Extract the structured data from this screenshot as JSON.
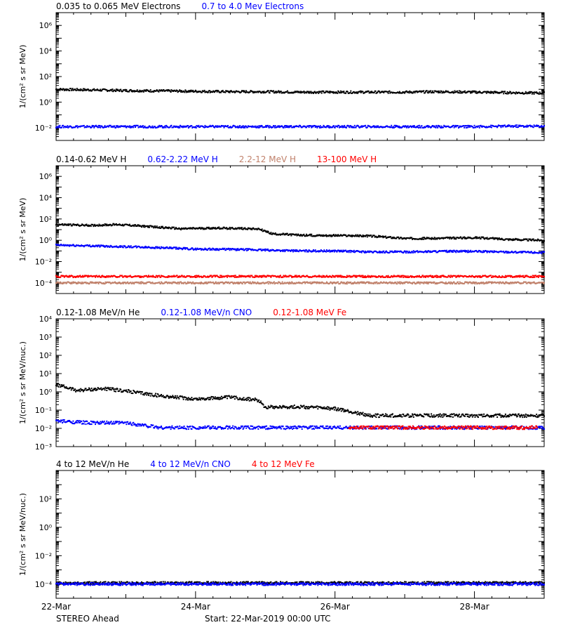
{
  "colors": {
    "axis": "#000000",
    "black_series": "#000000",
    "blue_series": "#0000ff",
    "tan_series": "#c0806a",
    "red_series": "#ff0000"
  },
  "chart_data": [
    {
      "type": "scatter",
      "log_y": true,
      "ylabel": "1/(cm² s sr MeV)",
      "ylim": [
        0.001,
        10000000
      ],
      "yticks": [
        {
          "value": 0.01,
          "label": "10⁻²"
        },
        {
          "value": 1,
          "label": "10⁰"
        },
        {
          "value": 100,
          "label": "10²"
        },
        {
          "value": 10000,
          "label": "10⁴"
        },
        {
          "value": 1000000,
          "label": "10⁶"
        }
      ],
      "series": [
        {
          "name": "0.035 to 0.065 MeV Electrons",
          "color": "#000000",
          "points": [
            [
              0,
              10
            ],
            [
              0.5,
              9
            ],
            [
              1,
              8
            ],
            [
              1.5,
              7.5
            ],
            [
              2,
              7
            ],
            [
              2.5,
              6.5
            ],
            [
              3,
              6.5
            ],
            [
              3.5,
              6
            ],
            [
              4,
              6
            ],
            [
              4.5,
              6
            ],
            [
              5,
              6
            ],
            [
              5.5,
              6.5
            ],
            [
              6,
              6
            ],
            [
              6.5,
              5.5
            ],
            [
              7,
              5
            ]
          ]
        },
        {
          "name": "0.7 to 4.0 Mev Electrons",
          "color": "#0000ff",
          "points": [
            [
              0,
              0.012
            ],
            [
              0.5,
              0.012
            ],
            [
              1,
              0.012
            ],
            [
              1.5,
              0.012
            ],
            [
              2,
              0.012
            ],
            [
              2.5,
              0.012
            ],
            [
              3,
              0.012
            ],
            [
              3.5,
              0.012
            ],
            [
              4,
              0.012
            ],
            [
              4.5,
              0.012
            ],
            [
              5,
              0.012
            ],
            [
              5.5,
              0.012
            ],
            [
              6,
              0.012
            ],
            [
              6.5,
              0.013
            ],
            [
              7,
              0.013
            ]
          ]
        }
      ]
    },
    {
      "type": "scatter",
      "log_y": true,
      "ylabel": "1/(cm² s sr MeV)",
      "ylim": [
        1e-05,
        10000000
      ],
      "yticks": [
        {
          "value": 0.0001,
          "label": "10⁻⁴"
        },
        {
          "value": 0.01,
          "label": "10⁻²"
        },
        {
          "value": 1,
          "label": "10⁰"
        },
        {
          "value": 100,
          "label": "10²"
        },
        {
          "value": 10000,
          "label": "10⁴"
        },
        {
          "value": 1000000,
          "label": "10⁶"
        }
      ],
      "series": [
        {
          "name": "0.14-0.62 MeV H",
          "color": "#000000",
          "points": [
            [
              0,
              30
            ],
            [
              0.5,
              25
            ],
            [
              0.9,
              30
            ],
            [
              1.3,
              20
            ],
            [
              1.8,
              12
            ],
            [
              2.3,
              14
            ],
            [
              2.9,
              12
            ],
            [
              3.1,
              4
            ],
            [
              3.5,
              3
            ],
            [
              4,
              2.8
            ],
            [
              4.5,
              2.5
            ],
            [
              5,
              1.5
            ],
            [
              5.5,
              1.5
            ],
            [
              6,
              1.8
            ],
            [
              6.5,
              1.2
            ],
            [
              7,
              1
            ]
          ]
        },
        {
          "name": "0.62-2.22 MeV H",
          "color": "#0000ff",
          "points": [
            [
              0,
              0.35
            ],
            [
              0.5,
              0.3
            ],
            [
              1,
              0.25
            ],
            [
              1.5,
              0.2
            ],
            [
              2,
              0.15
            ],
            [
              2.5,
              0.14
            ],
            [
              3,
              0.12
            ],
            [
              3.5,
              0.1
            ],
            [
              4,
              0.1
            ],
            [
              4.5,
              0.08
            ],
            [
              5,
              0.08
            ],
            [
              5.5,
              0.09
            ],
            [
              6,
              0.09
            ],
            [
              6.5,
              0.08
            ],
            [
              7,
              0.07
            ]
          ]
        },
        {
          "name": "2.2-12 MeV H",
          "color": "#c0806a",
          "points": [
            [
              0,
              0.0001
            ],
            [
              1,
              0.0001
            ],
            [
              2,
              0.0001
            ],
            [
              3,
              0.0001
            ],
            [
              4,
              0.0001
            ],
            [
              5,
              0.0001
            ],
            [
              6,
              0.0001
            ],
            [
              7,
              0.0001
            ]
          ]
        },
        {
          "name": "13-100 MeV H",
          "color": "#ff0000",
          "points": [
            [
              0,
              0.0004
            ],
            [
              1,
              0.0004
            ],
            [
              2,
              0.0004
            ],
            [
              3,
              0.0004
            ],
            [
              4,
              0.0004
            ],
            [
              5,
              0.0004
            ],
            [
              6,
              0.0004
            ],
            [
              7,
              0.0004
            ]
          ]
        }
      ]
    },
    {
      "type": "scatter",
      "log_y": true,
      "ylabel": "1/(cm² s sr MeV/nuc.)",
      "ylim": [
        0.001,
        10000
      ],
      "yticks": [
        {
          "value": 0.001,
          "label": "10⁻³"
        },
        {
          "value": 0.01,
          "label": "10⁻²"
        },
        {
          "value": 0.1,
          "label": "10⁻¹"
        },
        {
          "value": 1,
          "label": "10⁰"
        },
        {
          "value": 10,
          "label": "10¹"
        },
        {
          "value": 100,
          "label": "10²"
        },
        {
          "value": 1000,
          "label": "10³"
        },
        {
          "value": 10000,
          "label": "10⁴"
        }
      ],
      "series": [
        {
          "name": "0.12-1.08 MeV/n He",
          "color": "#000000",
          "points": [
            [
              0,
              2.5
            ],
            [
              0.3,
              1.2
            ],
            [
              0.7,
              1.5
            ],
            [
              1,
              1.1
            ],
            [
              1.5,
              0.6
            ],
            [
              2,
              0.4
            ],
            [
              2.5,
              0.5
            ],
            [
              2.9,
              0.35
            ],
            [
              3,
              0.15
            ],
            [
              3.5,
              0.15
            ],
            [
              4,
              0.12
            ],
            [
              4.5,
              0.05
            ],
            [
              5,
              0.05
            ],
            [
              5.5,
              0.05
            ],
            [
              6,
              0.05
            ],
            [
              6.5,
              0.05
            ],
            [
              7,
              0.05
            ]
          ]
        },
        {
          "name": "0.12-1.08 MeV/n CNO",
          "color": "#0000ff",
          "points": [
            [
              0,
              0.025
            ],
            [
              0.5,
              0.02
            ],
            [
              1,
              0.02
            ],
            [
              1.5,
              0.011
            ],
            [
              2,
              0.011
            ],
            [
              2.5,
              0.011
            ],
            [
              3,
              0.011
            ],
            [
              3.5,
              0.011
            ],
            [
              4,
              0.011
            ],
            [
              4.5,
              0.011
            ],
            [
              5,
              0.011
            ],
            [
              5.5,
              0.011
            ],
            [
              6,
              0.011
            ],
            [
              6.5,
              0.011
            ],
            [
              7,
              0.011
            ]
          ]
        },
        {
          "name": "0.12-1.08 MeV Fe",
          "color": "#ff0000",
          "points": [
            [
              4.2,
              0.011
            ],
            [
              4.8,
              0.011
            ],
            [
              5.4,
              0.011
            ],
            [
              5.9,
              0.011
            ],
            [
              6.4,
              0.011
            ],
            [
              6.9,
              0.011
            ]
          ]
        }
      ]
    },
    {
      "type": "scatter",
      "log_y": true,
      "ylabel": "1/(cm² s sr MeV/nuc.)",
      "ylim": [
        1e-05,
        10000
      ],
      "yticks": [
        {
          "value": 0.0001,
          "label": "10⁻⁴"
        },
        {
          "value": 0.01,
          "label": "10⁻²"
        },
        {
          "value": 1,
          "label": "10⁰"
        },
        {
          "value": 100,
          "label": "10²"
        }
      ],
      "series": [
        {
          "name": "4 to 12 MeV/n He",
          "color": "#000000",
          "points": [
            [
              0,
              0.00012
            ],
            [
              1,
              0.00012
            ],
            [
              2,
              0.00012
            ],
            [
              3,
              0.00012
            ],
            [
              4,
              0.00012
            ],
            [
              5,
              0.00012
            ],
            [
              6,
              0.00012
            ],
            [
              7,
              0.00012
            ]
          ]
        },
        {
          "name": "4 to 12 MeV/n CNO",
          "color": "#0000ff",
          "points": [
            [
              0,
              0.0001
            ],
            [
              1,
              0.0001
            ],
            [
              2,
              0.0001
            ],
            [
              3,
              0.0001
            ],
            [
              4,
              0.0001
            ],
            [
              5,
              0.0001
            ],
            [
              6,
              0.0001
            ],
            [
              7,
              0.0001
            ]
          ]
        },
        {
          "name": "4 to 12 MeV Fe",
          "color": "#ff0000",
          "points": []
        }
      ]
    }
  ],
  "x_axis": {
    "xlim": [
      0,
      7
    ],
    "ticks": [
      {
        "value": 0,
        "label": "22-Mar"
      },
      {
        "value": 2,
        "label": "24-Mar"
      },
      {
        "value": 4,
        "label": "26-Mar"
      },
      {
        "value": 6,
        "label": "28-Mar"
      }
    ]
  },
  "footer": {
    "spacecraft": "STEREO Ahead",
    "start": "Start: 22-Mar-2019 00:00 UTC"
  }
}
